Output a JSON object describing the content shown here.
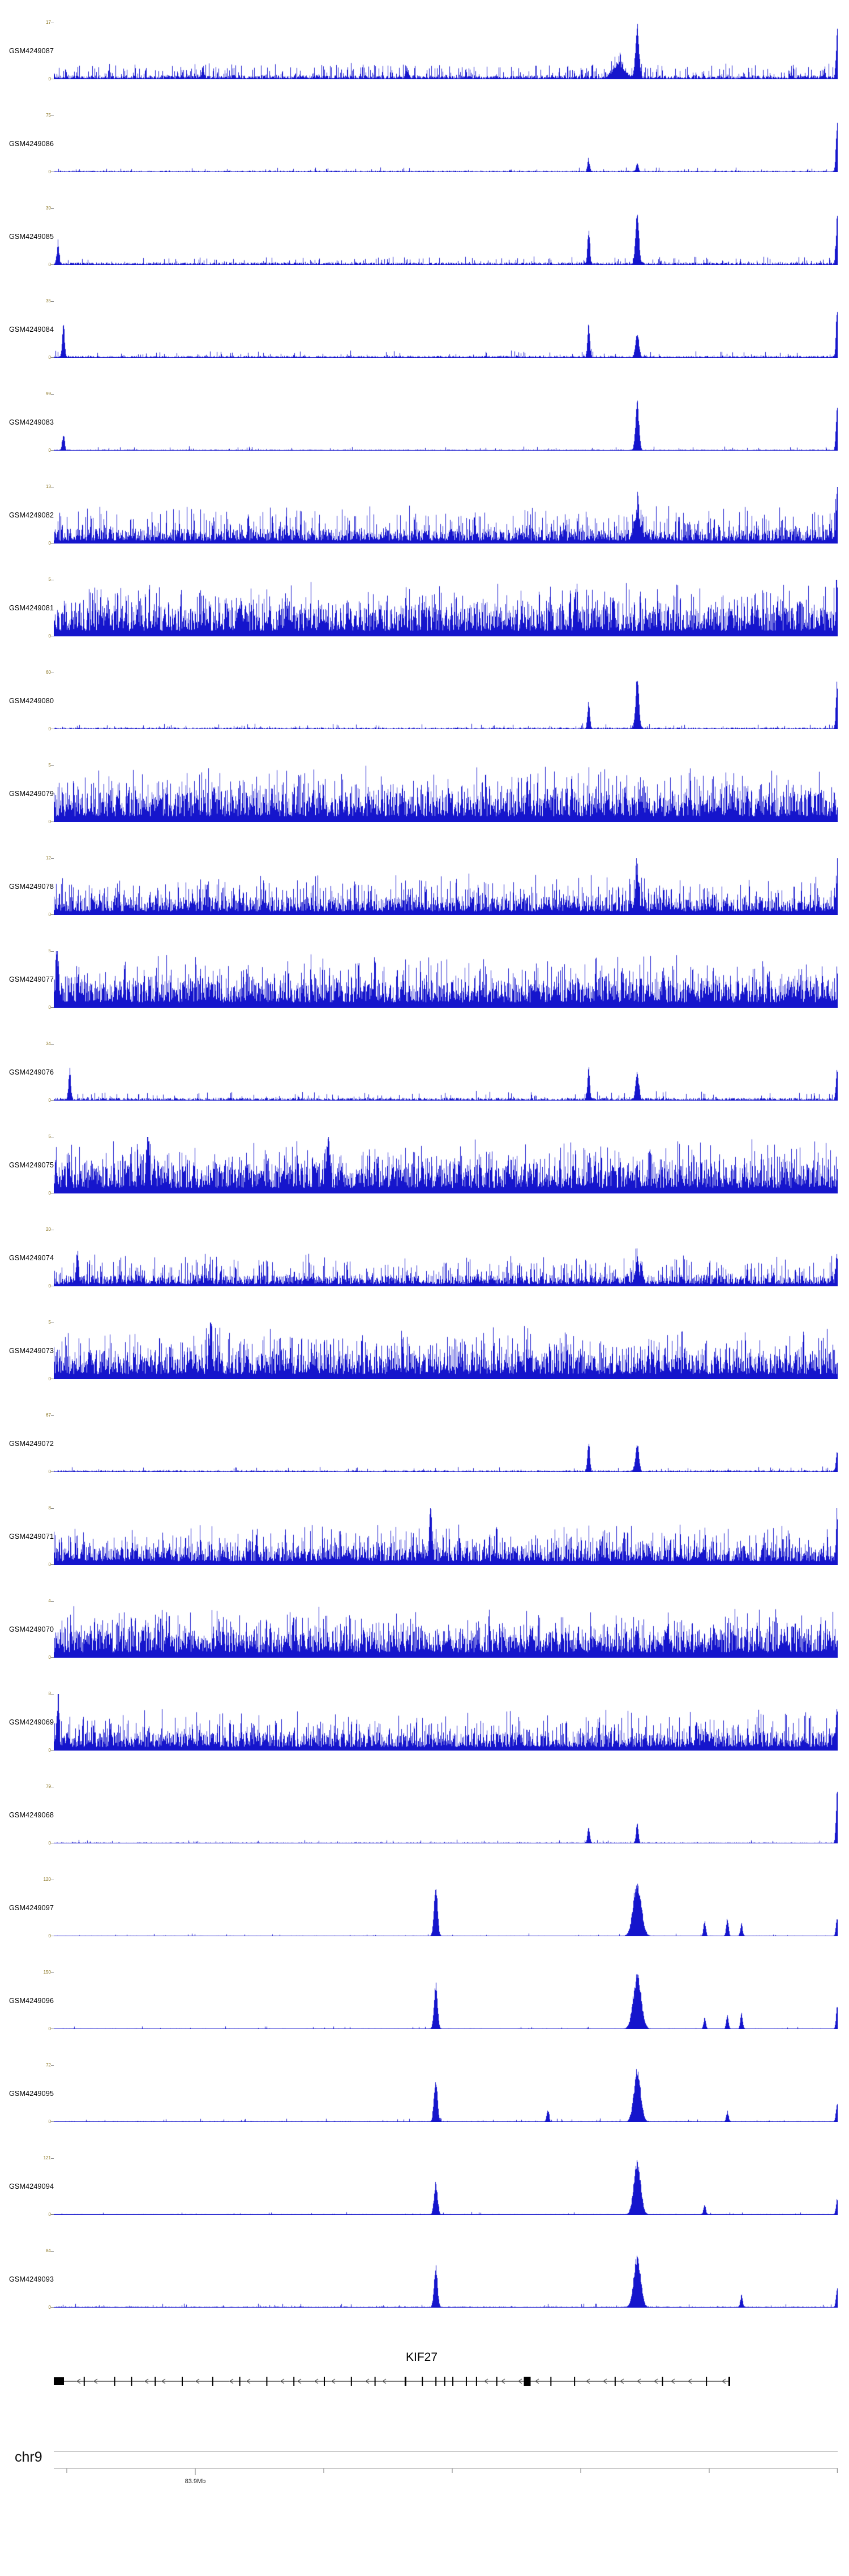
{
  "colors": {
    "signal": "#1515cc",
    "axis_text": "#8a7420",
    "track_label": "#000000",
    "gene": "#000000",
    "intron_arrow": "#555555",
    "ruler_line": "#999999",
    "ruler_text": "#222222"
  },
  "chart_data": {
    "type": "area",
    "description": "Genome browser coverage tracks over KIF27 locus, chr9 ~83.9Mb",
    "y_zero_label": "0",
    "x_axis": {
      "chromosome": "chr9",
      "tick_label": "83.9Mb"
    },
    "shared_peak_positions_frac": [
      0.487,
      0.682,
      0.744,
      0.999
    ],
    "tracks": [
      {
        "label": "GSM4249087",
        "ymax": 17,
        "ylim": [
          0,
          17
        ],
        "base": 0.07,
        "spike_prob": 0.3,
        "spike_max": 0.22,
        "peaks": [
          [
            0.744,
            1.0,
            3
          ],
          [
            0.72,
            0.25,
            10
          ],
          [
            0.19,
            0.2,
            2
          ],
          [
            0.45,
            0.18,
            2
          ],
          [
            0.999,
            0.75,
            2
          ]
        ]
      },
      {
        "label": "GSM4249086",
        "ymax": 75,
        "ylim": [
          0,
          75
        ],
        "base": 0.025,
        "spike_prob": 0.06,
        "spike_max": 0.07,
        "peaks": [
          [
            0.682,
            0.22,
            2
          ],
          [
            0.744,
            0.15,
            2
          ],
          [
            0.999,
            0.95,
            2
          ]
        ]
      },
      {
        "label": "GSM4249085",
        "ymax": 39,
        "ylim": [
          0,
          39
        ],
        "base": 0.045,
        "spike_prob": 0.14,
        "spike_max": 0.12,
        "peaks": [
          [
            0.005,
            0.35,
            2
          ],
          [
            0.682,
            0.6,
            2
          ],
          [
            0.744,
            0.95,
            3
          ],
          [
            0.999,
            0.85,
            2
          ]
        ]
      },
      {
        "label": "GSM4249084",
        "ymax": 35,
        "ylim": [
          0,
          35
        ],
        "base": 0.035,
        "spike_prob": 0.1,
        "spike_max": 0.1,
        "peaks": [
          [
            0.012,
            0.6,
            2
          ],
          [
            0.682,
            0.6,
            2
          ],
          [
            0.744,
            0.45,
            3
          ],
          [
            0.999,
            0.9,
            2
          ]
        ]
      },
      {
        "label": "GSM4249083",
        "ymax": 99,
        "ylim": [
          0,
          99
        ],
        "base": 0.02,
        "spike_prob": 0.06,
        "spike_max": 0.06,
        "peaks": [
          [
            0.012,
            0.3,
            2
          ],
          [
            0.744,
            0.9,
            3
          ],
          [
            0.999,
            0.8,
            2
          ]
        ]
      },
      {
        "label": "GSM4249082",
        "ymax": 13,
        "ylim": [
          0,
          13
        ],
        "base": 0.26,
        "spike_prob": 0.35,
        "spike_max": 0.45,
        "peaks": [
          [
            0.744,
            0.5,
            5
          ],
          [
            0.999,
            0.9,
            2
          ]
        ]
      },
      {
        "label": "GSM4249081",
        "ymax": 5,
        "ylim": [
          0,
          5
        ],
        "base": 0.5,
        "spike_prob": 0.5,
        "spike_max": 0.5,
        "peaks": [
          [
            0.999,
            0.6,
            2
          ]
        ]
      },
      {
        "label": "GSM4249080",
        "ymax": 60,
        "ylim": [
          0,
          60
        ],
        "base": 0.03,
        "spike_prob": 0.08,
        "spike_max": 0.08,
        "peaks": [
          [
            0.682,
            0.5,
            2
          ],
          [
            0.744,
            0.9,
            3
          ],
          [
            0.999,
            0.85,
            2
          ]
        ]
      },
      {
        "label": "GSM4249079",
        "ymax": 5,
        "ylim": [
          0,
          5
        ],
        "base": 0.52,
        "spike_prob": 0.5,
        "spike_max": 0.5,
        "peaks": []
      },
      {
        "label": "GSM4249078",
        "ymax": 12,
        "ylim": [
          0,
          12
        ],
        "base": 0.32,
        "spike_prob": 0.42,
        "spike_max": 0.45,
        "peaks": [
          [
            0.744,
            0.5,
            3
          ],
          [
            0.999,
            0.6,
            2
          ]
        ]
      },
      {
        "label": "GSM4249077",
        "ymax": 5,
        "ylim": [
          0,
          5
        ],
        "base": 0.48,
        "spike_prob": 0.5,
        "spike_max": 0.5,
        "peaks": [
          [
            0.004,
            1.0,
            2
          ]
        ]
      },
      {
        "label": "GSM4249076",
        "ymax": 34,
        "ylim": [
          0,
          34
        ],
        "base": 0.05,
        "spike_prob": 0.14,
        "spike_max": 0.13,
        "peaks": [
          [
            0.02,
            0.55,
            2
          ],
          [
            0.682,
            0.6,
            2
          ],
          [
            0.744,
            0.5,
            3
          ],
          [
            0.999,
            0.6,
            2
          ]
        ]
      },
      {
        "label": "GSM4249075",
        "ymax": 5,
        "ylim": [
          0,
          5
        ],
        "base": 0.5,
        "spike_prob": 0.5,
        "spike_max": 0.5,
        "peaks": [
          [
            0.12,
            1.0,
            2
          ],
          [
            0.35,
            1.0,
            2
          ]
        ]
      },
      {
        "label": "GSM4249074",
        "ymax": 20,
        "ylim": [
          0,
          20
        ],
        "base": 0.2,
        "spike_prob": 0.32,
        "spike_max": 0.38,
        "peaks": [
          [
            0.03,
            0.55,
            2
          ],
          [
            0.744,
            0.5,
            3
          ],
          [
            0.999,
            0.55,
            2
          ]
        ]
      },
      {
        "label": "GSM4249073",
        "ymax": 5,
        "ylim": [
          0,
          5
        ],
        "base": 0.45,
        "spike_prob": 0.5,
        "spike_max": 0.5,
        "peaks": [
          [
            0.2,
            0.95,
            2
          ]
        ]
      },
      {
        "label": "GSM4249072",
        "ymax": 67,
        "ylim": [
          0,
          67
        ],
        "base": 0.03,
        "spike_prob": 0.08,
        "spike_max": 0.07,
        "peaks": [
          [
            0.682,
            0.55,
            2
          ],
          [
            0.744,
            0.5,
            3
          ],
          [
            0.999,
            0.4,
            2
          ]
        ]
      },
      {
        "label": "GSM4249071",
        "ymax": 8,
        "ylim": [
          0,
          8
        ],
        "base": 0.33,
        "spike_prob": 0.42,
        "spike_max": 0.42,
        "peaks": [
          [
            0.48,
            1.0,
            2
          ],
          [
            0.999,
            0.8,
            2
          ]
        ]
      },
      {
        "label": "GSM4249070",
        "ymax": 4,
        "ylim": [
          0,
          4
        ],
        "base": 0.48,
        "spike_prob": 0.5,
        "spike_max": 0.45,
        "peaks": []
      },
      {
        "label": "GSM4249069",
        "ymax": 8,
        "ylim": [
          0,
          8
        ],
        "base": 0.32,
        "spike_prob": 0.4,
        "spike_max": 0.42,
        "peaks": [
          [
            0.005,
            0.85,
            2
          ],
          [
            0.999,
            0.6,
            2
          ]
        ]
      },
      {
        "label": "GSM4249068",
        "ymax": 79,
        "ylim": [
          0,
          79
        ],
        "base": 0.018,
        "spike_prob": 0.05,
        "spike_max": 0.05,
        "peaks": [
          [
            0.682,
            0.3,
            2
          ],
          [
            0.744,
            0.38,
            2
          ],
          [
            0.999,
            0.95,
            2
          ]
        ]
      },
      {
        "label": "GSM4249097",
        "ymax": 120,
        "ylim": [
          0,
          120
        ],
        "base": 0.012,
        "spike_prob": 0.035,
        "spike_max": 0.04,
        "peaks": [
          [
            0.487,
            1.0,
            3
          ],
          [
            0.744,
            1.0,
            7
          ],
          [
            0.83,
            0.28,
            2
          ],
          [
            0.859,
            0.33,
            2
          ],
          [
            0.877,
            0.22,
            2
          ],
          [
            0.999,
            0.35,
            2
          ]
        ]
      },
      {
        "label": "GSM4249096",
        "ymax": 150,
        "ylim": [
          0,
          150
        ],
        "base": 0.012,
        "spike_prob": 0.03,
        "spike_max": 0.04,
        "peaks": [
          [
            0.487,
            0.85,
            3
          ],
          [
            0.744,
            1.0,
            7
          ],
          [
            0.83,
            0.2,
            2
          ],
          [
            0.859,
            0.25,
            2
          ],
          [
            0.877,
            0.3,
            2
          ],
          [
            0.999,
            0.4,
            2
          ]
        ]
      },
      {
        "label": "GSM4249095",
        "ymax": 72,
        "ylim": [
          0,
          72
        ],
        "base": 0.015,
        "spike_prob": 0.05,
        "spike_max": 0.05,
        "peaks": [
          [
            0.487,
            0.8,
            3
          ],
          [
            0.63,
            0.22,
            2
          ],
          [
            0.744,
            0.95,
            6
          ],
          [
            0.859,
            0.18,
            2
          ],
          [
            0.999,
            0.35,
            2
          ]
        ]
      },
      {
        "label": "GSM4249094",
        "ymax": 121,
        "ylim": [
          0,
          121
        ],
        "base": 0.013,
        "spike_prob": 0.04,
        "spike_max": 0.04,
        "peaks": [
          [
            0.487,
            0.6,
            3
          ],
          [
            0.744,
            1.0,
            6
          ],
          [
            0.83,
            0.18,
            2
          ],
          [
            0.999,
            0.3,
            2
          ]
        ]
      },
      {
        "label": "GSM4249093",
        "ymax": 84,
        "ylim": [
          0,
          84
        ],
        "base": 0.02,
        "spike_prob": 0.06,
        "spike_max": 0.06,
        "peaks": [
          [
            0.487,
            0.75,
            3
          ],
          [
            0.744,
            0.95,
            6
          ],
          [
            0.877,
            0.22,
            2
          ],
          [
            0.999,
            0.35,
            2
          ]
        ]
      }
    ]
  },
  "gene": {
    "name": "KIF27",
    "strand_arrows": "left",
    "exons": [
      [
        0.0,
        18,
        14
      ],
      [
        0.045,
        2,
        16
      ],
      [
        0.09,
        2,
        16
      ],
      [
        0.115,
        2,
        16
      ],
      [
        0.15,
        2,
        16
      ],
      [
        0.19,
        2,
        16
      ],
      [
        0.235,
        2,
        16
      ],
      [
        0.275,
        2,
        16
      ],
      [
        0.315,
        2,
        16
      ],
      [
        0.355,
        2,
        16
      ],
      [
        0.4,
        2,
        16
      ],
      [
        0.44,
        2,
        16
      ],
      [
        0.475,
        2,
        16
      ],
      [
        0.52,
        3,
        16
      ],
      [
        0.545,
        2,
        16
      ],
      [
        0.565,
        2,
        16
      ],
      [
        0.578,
        2,
        16
      ],
      [
        0.59,
        2,
        16
      ],
      [
        0.61,
        2,
        16
      ],
      [
        0.625,
        2,
        16
      ],
      [
        0.655,
        2,
        16
      ],
      [
        0.7,
        12,
        16
      ],
      [
        0.735,
        2,
        16
      ],
      [
        0.77,
        2,
        16
      ],
      [
        0.83,
        2,
        16
      ],
      [
        0.9,
        2,
        16
      ],
      [
        0.965,
        2,
        16
      ],
      [
        1.0,
        3,
        16
      ]
    ]
  },
  "ruler": {
    "chromosome": "chr9",
    "label": "83.9Mb",
    "ticks": [
      0.0166,
      0.1805,
      0.3444,
      0.5083,
      0.6722,
      0.8361,
      0.9995
    ],
    "label_tick": 1
  }
}
